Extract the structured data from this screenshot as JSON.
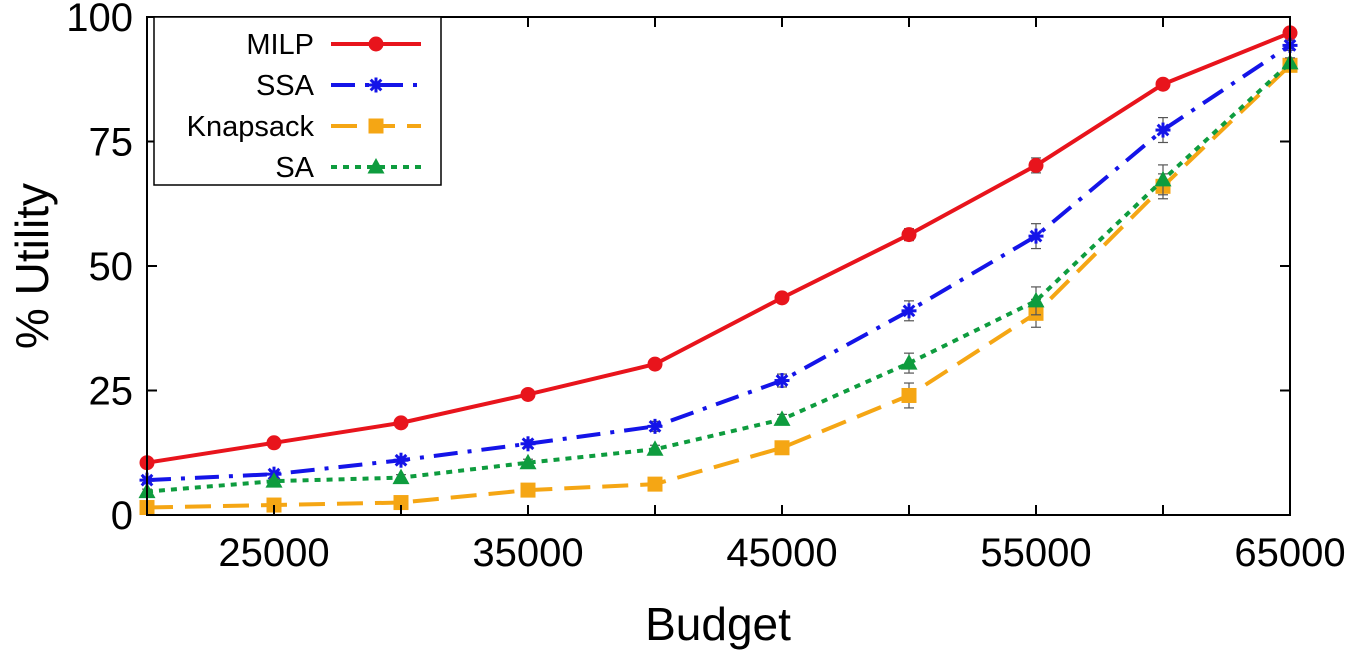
{
  "chart_data": {
    "type": "line",
    "xlabel": "Budget",
    "ylabel": "% Utility",
    "xlim": [
      20000,
      65000
    ],
    "ylim": [
      0,
      100
    ],
    "xticks": [
      25000,
      35000,
      45000,
      55000,
      65000
    ],
    "yticks": [
      0,
      25,
      50,
      75,
      100
    ],
    "x": [
      20000,
      25000,
      30000,
      35000,
      40000,
      45000,
      50000,
      55000,
      60000,
      65000
    ],
    "grid": false,
    "legend_position": "top-left",
    "series": [
      {
        "name": "MILP",
        "color": "#e8141c",
        "marker": "circle",
        "dash": "solid",
        "values": [
          10.5,
          14.5,
          18.5,
          24.2,
          30.3,
          43.6,
          56.3,
          70.2,
          86.5,
          96.8
        ],
        "errors": [
          0.5,
          0.5,
          0.5,
          0.6,
          0.6,
          0.8,
          1.2,
          1.5,
          1.0,
          0.5
        ]
      },
      {
        "name": "SSA",
        "color": "#1414e8",
        "marker": "asterisk",
        "dash": "dashdot",
        "values": [
          7.0,
          8.2,
          11.0,
          14.3,
          17.8,
          27.0,
          41.0,
          56.0,
          77.3,
          94.3
        ],
        "errors": [
          0.5,
          0.6,
          0.7,
          0.8,
          1.0,
          1.3,
          2.0,
          2.5,
          2.5,
          1.0
        ]
      },
      {
        "name": "Knapsack",
        "color": "#f5a614",
        "marker": "square",
        "dash": "longdash",
        "values": [
          1.5,
          2.0,
          2.5,
          5.0,
          6.2,
          13.5,
          24.0,
          40.5,
          66.0,
          90.3
        ],
        "errors": [
          0.4,
          0.5,
          0.5,
          0.6,
          0.8,
          1.2,
          2.5,
          2.8,
          2.5,
          1.0
        ]
      },
      {
        "name": "SA",
        "color": "#0e9c3e",
        "marker": "triangle",
        "dash": "dotted",
        "values": [
          4.7,
          6.8,
          7.5,
          10.5,
          13.2,
          19.2,
          30.5,
          43.0,
          67.3,
          90.8
        ],
        "errors": [
          0.5,
          0.5,
          0.6,
          0.7,
          0.8,
          1.0,
          2.0,
          2.8,
          3.0,
          1.0
        ]
      }
    ]
  }
}
